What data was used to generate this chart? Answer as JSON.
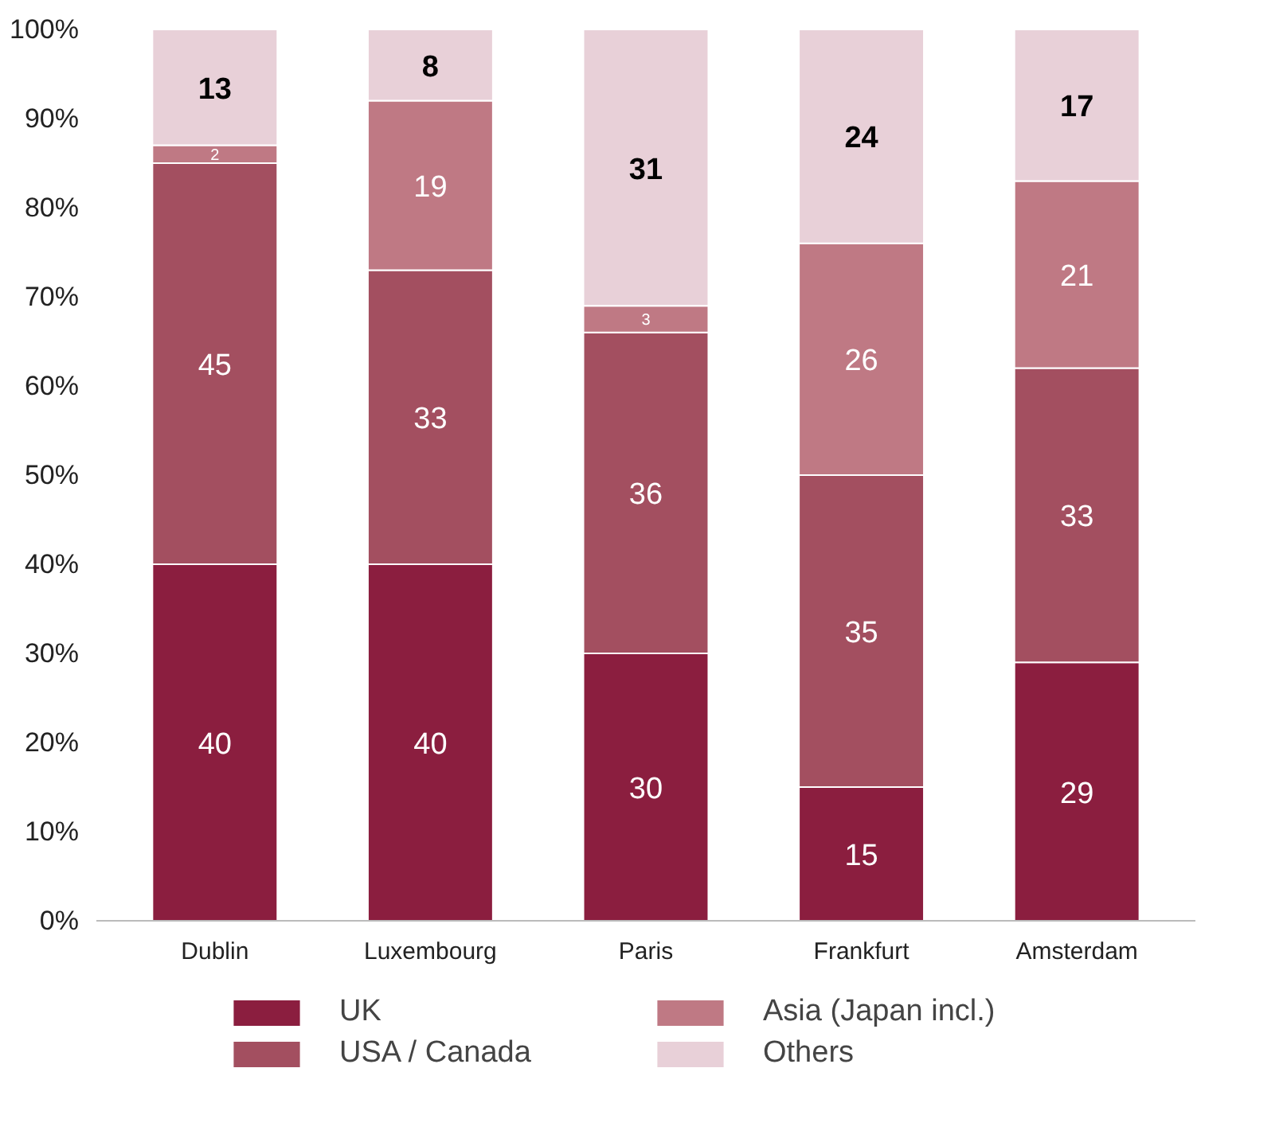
{
  "chart_data": {
    "type": "bar",
    "stacked": true,
    "data_labels": true,
    "grid": false,
    "legend": "bottom",
    "categories": [
      "Dublin",
      "Luxembourg",
      "Paris",
      "Frankfurt",
      "Amsterdam"
    ],
    "ylim": [
      0,
      100
    ],
    "yticks": [
      {
        "value": 0,
        "label": "0%"
      },
      {
        "value": 10,
        "label": "10%"
      },
      {
        "value": 20,
        "label": "20%"
      },
      {
        "value": 30,
        "label": "30%"
      },
      {
        "value": 40,
        "label": "40%"
      },
      {
        "value": 50,
        "label": "50%"
      },
      {
        "value": 60,
        "label": "60%"
      },
      {
        "value": 70,
        "label": "70%"
      },
      {
        "value": 80,
        "label": "80%"
      },
      {
        "value": 90,
        "label": "90%"
      },
      {
        "value": 100,
        "label": "100%"
      }
    ],
    "series": [
      {
        "name": "UK",
        "color": "#8b1e3f",
        "values": [
          40,
          40,
          30,
          15,
          29
        ]
      },
      {
        "name": "USA / Canada",
        "color": "#a34f60",
        "values": [
          45,
          33,
          36,
          35,
          33
        ]
      },
      {
        "name": "Asia (Japan incl.)",
        "color": "#bf7984",
        "values": [
          2,
          19,
          3,
          26,
          21
        ]
      },
      {
        "name": "Others",
        "color": "#e8d0d8",
        "values": [
          13,
          8,
          31,
          24,
          17
        ]
      }
    ]
  }
}
